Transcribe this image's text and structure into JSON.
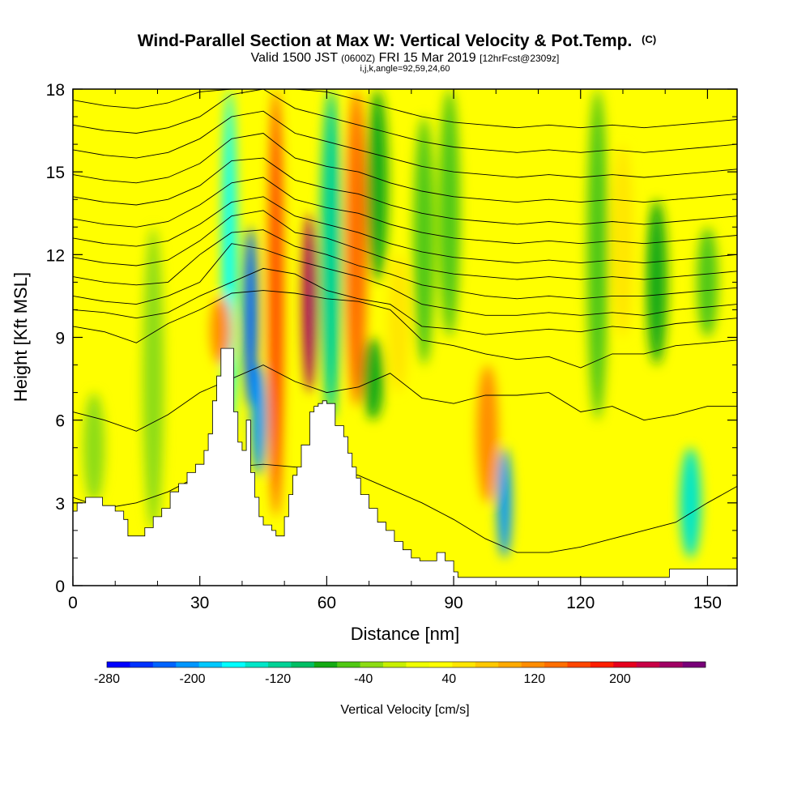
{
  "chart_data": {
    "type": "heatmap",
    "title": "Wind-Parallel Section at Max W: Vertical Velocity & Pot.Temp.",
    "title_mark": "(C)",
    "subtitle": {
      "prefix": "Valid 1500 JST",
      "utc": "(0600Z)",
      "date": "FRI 15 Mar 2019",
      "forecast": "[12hrFcst@2309z]"
    },
    "index_line": "i,j,k,angle=92,59,24,60",
    "xlabel": "Distance [nm]",
    "ylabel": "Height [Kft MSL]",
    "xlim": [
      0,
      157
    ],
    "ylim": [
      0,
      18
    ],
    "xticks": [
      0,
      30,
      60,
      90,
      120,
      150
    ],
    "yticks": [
      0,
      3,
      6,
      9,
      12,
      15,
      18
    ],
    "colorbar": {
      "label": "Vertical Velocity [cm/s]",
      "tick_labels": [
        -280,
        -200,
        -120,
        -40,
        40,
        120,
        200
      ],
      "range": [
        -280,
        280
      ],
      "colors": [
        "#0000ff",
        "#0032ff",
        "#0064ff",
        "#0096ff",
        "#00c8ff",
        "#00ffff",
        "#00e6c8",
        "#00d296",
        "#00be64",
        "#14aa14",
        "#50c814",
        "#8cdc14",
        "#c8f000",
        "#f0ff00",
        "#ffff00",
        "#ffe600",
        "#ffc800",
        "#ffaa00",
        "#ff8c00",
        "#ff6e00",
        "#ff4600",
        "#ff1e00",
        "#e6001e",
        "#c80046",
        "#a00064",
        "#780078"
      ]
    },
    "velocity_features": [
      {
        "x": 37,
        "z_min": 5.5,
        "z_max": 18,
        "w": -160
      },
      {
        "x": 42,
        "z_min": 6.5,
        "z_max": 13,
        "w": -230
      },
      {
        "x": 44,
        "z_min": 4,
        "z_max": 8,
        "w": -200
      },
      {
        "x": 48,
        "z_min": 2.5,
        "z_max": 18,
        "w": 160
      },
      {
        "x": 35,
        "z_min": 8,
        "z_max": 10.5,
        "w": 120
      },
      {
        "x": 56,
        "z_min": 7,
        "z_max": 13.5,
        "w": 250
      },
      {
        "x": 61,
        "z_min": 6,
        "z_max": 18,
        "w": -120
      },
      {
        "x": 67,
        "z_min": 6.5,
        "z_max": 18,
        "w": 150
      },
      {
        "x": 71,
        "z_min": 6,
        "z_max": 9,
        "w": -80
      },
      {
        "x": 72,
        "z_min": 11,
        "z_max": 18,
        "w": -80
      },
      {
        "x": 77,
        "z_min": 7,
        "z_max": 12,
        "w": 60
      },
      {
        "x": 98,
        "z_min": 3,
        "z_max": 8,
        "w": 120
      },
      {
        "x": 102,
        "z_min": 1,
        "z_max": 5,
        "w": -200
      },
      {
        "x": 89,
        "z_min": 9,
        "z_max": 18,
        "w": -60
      },
      {
        "x": 124,
        "z_min": 6,
        "z_max": 18,
        "w": -60
      },
      {
        "x": 130,
        "z_min": 9,
        "z_max": 16,
        "w": 60
      },
      {
        "x": 138,
        "z_min": 8,
        "z_max": 14,
        "w": -70
      },
      {
        "x": 146,
        "z_min": 1,
        "z_max": 5,
        "w": -140
      },
      {
        "x": 150,
        "z_min": 9,
        "z_max": 13,
        "w": -50
      },
      {
        "x": 19,
        "z_min": 2,
        "z_max": 13,
        "w": -40
      },
      {
        "x": 10,
        "z_min": 8,
        "z_max": 18,
        "w": 30
      },
      {
        "x": 83,
        "z_min": 8,
        "z_max": 17,
        "w": -50
      },
      {
        "x": 113,
        "z_min": 7,
        "z_max": 16,
        "w": 40
      },
      {
        "x": 5,
        "z_min": 3,
        "z_max": 7,
        "w": -35
      }
    ],
    "terrain": {
      "x": [
        0,
        1,
        3,
        5,
        7,
        10,
        12,
        13,
        15,
        17,
        19,
        21,
        23,
        25,
        27,
        29,
        31,
        32,
        33,
        34,
        35,
        36,
        38,
        39,
        40,
        41,
        42,
        43,
        44,
        45,
        46,
        47,
        48,
        49,
        50,
        51,
        52,
        53,
        54,
        56,
        57,
        58,
        59,
        60,
        62,
        64,
        65,
        66,
        67,
        68,
        70,
        72,
        74,
        76,
        78,
        80,
        82,
        84,
        86,
        88,
        90,
        91,
        94,
        100,
        110,
        120,
        130,
        140,
        141,
        145,
        150,
        157
      ],
      "z": [
        2.7,
        3.0,
        3.2,
        3.2,
        2.9,
        2.7,
        2.4,
        1.8,
        1.8,
        2.1,
        2.5,
        2.8,
        3.4,
        3.7,
        4.1,
        4.4,
        4.9,
        5.5,
        6.7,
        7.6,
        8.6,
        8.6,
        6.3,
        5.2,
        4.9,
        6.0,
        4.1,
        3.2,
        2.5,
        2.2,
        2.2,
        2.0,
        1.8,
        1.8,
        2.5,
        3.3,
        4.0,
        4.3,
        5.1,
        6.3,
        6.5,
        6.6,
        6.7,
        6.6,
        5.8,
        5.4,
        4.8,
        4.3,
        3.9,
        3.3,
        2.8,
        2.3,
        2.0,
        1.6,
        1.3,
        1.0,
        0.9,
        0.9,
        1.2,
        0.9,
        0.5,
        0.3,
        0.3,
        0.3,
        0.3,
        0.3,
        0.3,
        0.3,
        0.6,
        0.6,
        0.6,
        0.6
      ]
    },
    "theta_contours": [
      {
        "z": [
          3.2,
          2.8,
          3.0,
          3.4,
          4.0,
          4.3,
          4.4,
          4.3,
          4.2,
          4.0,
          3.5,
          3.0,
          2.4,
          1.7,
          1.2,
          1.2,
          1.4,
          1.7,
          2.0,
          2.3,
          3.0,
          3.6
        ]
      },
      {
        "z": [
          6.3,
          6.0,
          5.6,
          6.2,
          7.0,
          7.5,
          8.0,
          7.4,
          7.0,
          7.2,
          7.7,
          6.8,
          6.6,
          6.9,
          6.9,
          7.0,
          6.3,
          6.5,
          6.0,
          6.2,
          6.5,
          6.5
        ]
      },
      {
        "z": [
          9.4,
          9.2,
          8.8,
          9.5,
          10.0,
          10.6,
          10.7,
          10.6,
          10.4,
          10.3,
          10.0,
          8.9,
          8.7,
          8.4,
          8.2,
          8.3,
          7.9,
          8.4,
          8.4,
          8.7,
          8.8,
          8.9
        ]
      },
      {
        "z": [
          10.0,
          9.9,
          9.7,
          9.9,
          10.5,
          11.0,
          11.5,
          11.3,
          10.7,
          10.4,
          10.2,
          9.4,
          9.3,
          9.1,
          9.2,
          9.3,
          9.2,
          9.4,
          9.3,
          9.5,
          9.6,
          9.7
        ]
      },
      {
        "z": [
          10.5,
          10.3,
          10.2,
          10.5,
          11.0,
          12.4,
          12.2,
          11.8,
          11.5,
          11.2,
          10.8,
          10.2,
          10.0,
          9.8,
          9.8,
          9.9,
          9.8,
          9.9,
          9.8,
          10.0,
          10.1,
          10.2
        ]
      },
      {
        "z": [
          11.2,
          11.0,
          10.9,
          11.0,
          12.0,
          12.8,
          12.9,
          12.3,
          12.0,
          11.6,
          11.3,
          10.9,
          10.7,
          10.5,
          10.4,
          10.5,
          10.4,
          10.5,
          10.5,
          10.6,
          10.7,
          10.8
        ]
      },
      {
        "z": [
          11.9,
          11.7,
          11.6,
          11.8,
          12.5,
          13.4,
          13.6,
          12.8,
          12.6,
          12.2,
          11.8,
          11.5,
          11.3,
          11.2,
          11.1,
          11.2,
          11.1,
          11.2,
          11.1,
          11.2,
          11.3,
          11.4
        ]
      },
      {
        "z": [
          12.6,
          12.4,
          12.3,
          12.5,
          13.1,
          13.9,
          14.1,
          13.4,
          13.1,
          12.8,
          12.4,
          12.1,
          11.9,
          11.8,
          11.7,
          11.8,
          11.7,
          11.8,
          11.7,
          11.8,
          11.9,
          12.0
        ]
      },
      {
        "z": [
          13.3,
          13.1,
          13.0,
          13.2,
          13.8,
          14.6,
          14.8,
          14.0,
          13.7,
          13.5,
          13.1,
          12.8,
          12.6,
          12.5,
          12.4,
          12.5,
          12.4,
          12.5,
          12.4,
          12.5,
          12.6,
          12.7
        ]
      },
      {
        "z": [
          14.1,
          13.9,
          13.8,
          14.0,
          14.5,
          15.4,
          15.5,
          14.7,
          14.4,
          14.2,
          13.8,
          13.5,
          13.3,
          13.2,
          13.1,
          13.2,
          13.1,
          13.2,
          13.1,
          13.2,
          13.3,
          13.4
        ]
      },
      {
        "z": [
          14.9,
          14.7,
          14.6,
          14.8,
          15.3,
          16.2,
          16.4,
          15.5,
          15.2,
          15.0,
          14.6,
          14.3,
          14.1,
          14.0,
          13.9,
          14.0,
          13.9,
          14.0,
          13.9,
          14.0,
          14.1,
          14.2
        ]
      },
      {
        "z": [
          15.8,
          15.6,
          15.5,
          15.7,
          16.2,
          17.0,
          17.2,
          16.4,
          16.1,
          15.8,
          15.5,
          15.2,
          15.0,
          14.9,
          14.8,
          14.9,
          14.8,
          14.9,
          14.8,
          14.9,
          15.0,
          15.1
        ]
      },
      {
        "z": [
          16.7,
          16.5,
          16.4,
          16.6,
          17.0,
          17.8,
          18.0,
          17.3,
          17.0,
          16.7,
          16.4,
          16.1,
          15.9,
          15.8,
          15.7,
          15.8,
          15.7,
          15.8,
          15.7,
          15.8,
          15.9,
          16.0
        ]
      },
      {
        "z": [
          17.6,
          17.4,
          17.3,
          17.5,
          17.9,
          18.0,
          18.0,
          18.0,
          17.9,
          17.6,
          17.3,
          17.0,
          16.8,
          16.7,
          16.6,
          16.7,
          16.6,
          16.7,
          16.6,
          16.7,
          16.8,
          16.9
        ]
      }
    ],
    "theta_contour_x": [
      0,
      7.5,
      15,
      22.5,
      30,
      37.5,
      45,
      52.5,
      60,
      67.5,
      75,
      82.5,
      90,
      97.5,
      105,
      112.5,
      120,
      127.5,
      135,
      142.5,
      150,
      157
    ]
  }
}
